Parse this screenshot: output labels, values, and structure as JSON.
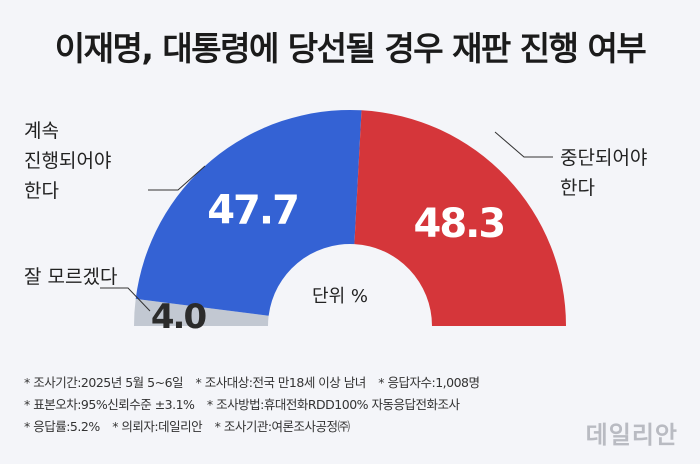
{
  "title": "이재명, 대통령에 당선될 경우 재판 진행 여부",
  "chart_data": {
    "type": "pie",
    "subtype": "semi-donut",
    "categories": [
      "계속 진행되어야 한다",
      "중단되어야 한다",
      "잘 모르겠다"
    ],
    "values": [
      47.7,
      48.3,
      4.0
    ],
    "value_labels": [
      "47.7",
      "48.3",
      "4.0"
    ],
    "colors": [
      "#3462d4",
      "#d5363a",
      "#c2c8d2"
    ],
    "unit_label": "단위 %"
  },
  "labels": {
    "continue_lines": [
      "계속",
      "진행되어야",
      "한다"
    ],
    "stop_lines": [
      "중단되어야",
      "한다"
    ],
    "unsure": "잘 모르겠다"
  },
  "notes": {
    "line1": [
      "* 조사기간:2025년 5월 5~6일",
      "* 조사대상:전국 만18세 이상 남녀",
      "* 응답자수:1,008명"
    ],
    "line2": [
      "* 표본오차:95%신뢰수준 ±3.1%",
      "* 조사방법:휴대전화RDD100% 자동응답전화조사"
    ],
    "line3": [
      "* 응답률:5.2%",
      "* 의뢰자:데일리안",
      "* 조사기관:여론조사공정㈜"
    ]
  },
  "logo": "데일리안"
}
